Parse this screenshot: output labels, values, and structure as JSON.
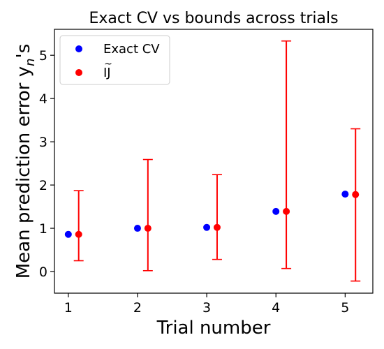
{
  "chart_data": {
    "type": "scatter",
    "title": "Exact CV vs bounds across trials",
    "xlabel": "Trial number",
    "ylabel": "Mean prediction error y",
    "ylabel_subscript": "n",
    "ylabel_suffix": "'s",
    "xlim": [
      0.8,
      5.4
    ],
    "ylim": [
      -0.5,
      5.6
    ],
    "xticks": [
      1,
      2,
      3,
      4,
      5
    ],
    "yticks": [
      0,
      1,
      2,
      3,
      4,
      5
    ],
    "grid": false,
    "legend_position": "top-left",
    "series": [
      {
        "name": "Exact CV",
        "color": "#0000ff",
        "x": [
          1,
          2,
          3,
          4,
          5
        ],
        "y": [
          0.86,
          1.0,
          1.02,
          1.39,
          1.79
        ]
      },
      {
        "name": "IJ",
        "name_mark": "~",
        "color": "#ff0000",
        "x": [
          1.15,
          2.15,
          3.15,
          4.15,
          5.15
        ],
        "y": [
          0.86,
          1.0,
          1.02,
          1.39,
          1.78
        ],
        "error_low": [
          0.25,
          0.02,
          0.28,
          0.07,
          -0.22
        ],
        "error_high": [
          1.87,
          2.59,
          2.24,
          5.33,
          3.3
        ]
      }
    ]
  }
}
